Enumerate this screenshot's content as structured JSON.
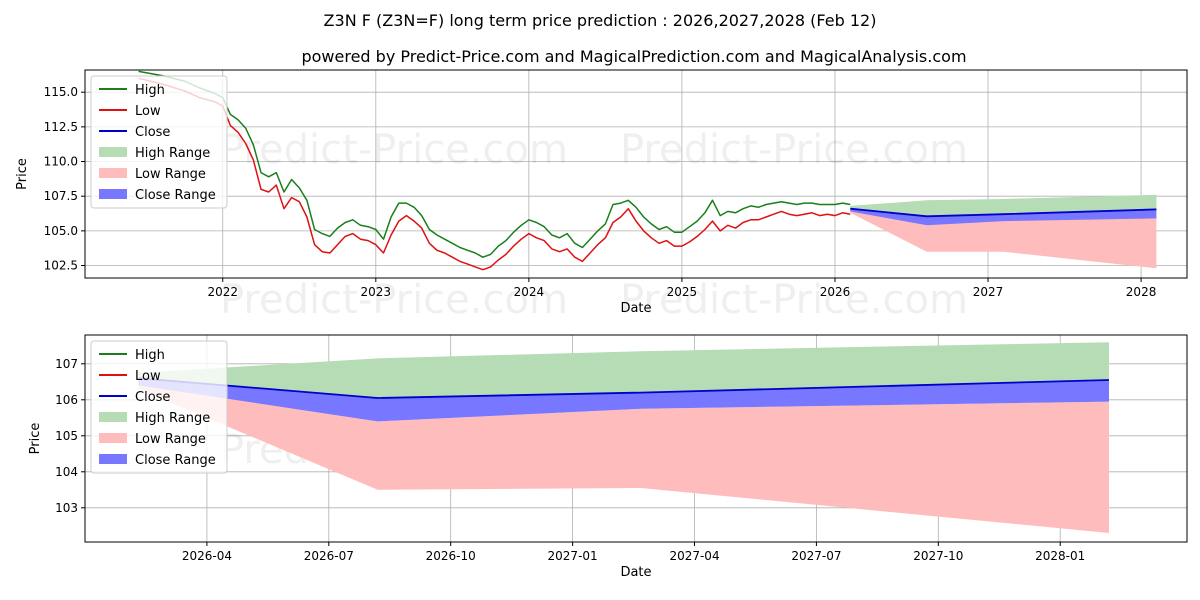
{
  "header": {
    "title": "Z3N F (Z3N=F) long term price prediction : 2026,2027,2028 (Feb 12)",
    "subtitle": "powered by Predict-Price.com and MagicalPrediction.com and MagicalAnalysis.com"
  },
  "watermark": "Predict-Price.com",
  "colors": {
    "high": "#1a7f1a",
    "low": "#dd1111",
    "close": "#0000cc",
    "high_range": "#b5dcb5",
    "low_range": "#ffbcbc",
    "close_range": "#7777ff",
    "grid": "#b0b0b0"
  },
  "chart_data": [
    {
      "type": "line",
      "name": "history",
      "xlabel": "Date",
      "ylabel": "Price",
      "xlim": [
        2021.1,
        2028.3
      ],
      "ylim": [
        101.6,
        116.6
      ],
      "x_ticks": [
        2022,
        2023,
        2024,
        2025,
        2026,
        2027,
        2028
      ],
      "x_tick_labels": [
        "2022",
        "2023",
        "2024",
        "2025",
        "2026",
        "2027",
        "2028"
      ],
      "y_ticks": [
        102.5,
        105.0,
        107.5,
        110.0,
        112.5,
        115.0
      ],
      "y_tick_labels": [
        "102.5",
        "105.0",
        "107.5",
        "110.0",
        "112.5",
        "115.0"
      ],
      "grid": true,
      "legend": [
        "High",
        "Low",
        "Close",
        "High Range",
        "Low Range",
        "Close Range"
      ],
      "legend_position": "top-left",
      "history": {
        "x": [
          2021.45,
          2021.6,
          2021.75,
          2021.85,
          2021.95,
          2022.0,
          2022.05,
          2022.1,
          2022.15,
          2022.2,
          2022.25,
          2022.3,
          2022.35,
          2022.4,
          2022.45,
          2022.5,
          2022.55,
          2022.6,
          2022.65,
          2022.7,
          2022.75,
          2022.8,
          2022.85,
          2022.9,
          2022.95,
          2023.0,
          2023.05,
          2023.1,
          2023.15,
          2023.2,
          2023.25,
          2023.3,
          2023.35,
          2023.4,
          2023.45,
          2023.5,
          2023.55,
          2023.6,
          2023.65,
          2023.7,
          2023.75,
          2023.8,
          2023.85,
          2023.9,
          2023.95,
          2024.0,
          2024.05,
          2024.1,
          2024.15,
          2024.2,
          2024.25,
          2024.3,
          2024.35,
          2024.4,
          2024.45,
          2024.5,
          2024.55,
          2024.6,
          2024.65,
          2024.7,
          2024.75,
          2024.8,
          2024.85,
          2024.9,
          2024.95,
          2025.0,
          2025.05,
          2025.1,
          2025.15,
          2025.2,
          2025.25,
          2025.3,
          2025.35,
          2025.4,
          2025.45,
          2025.5,
          2025.55,
          2025.6,
          2025.65,
          2025.7,
          2025.75,
          2025.8,
          2025.85,
          2025.9,
          2025.95,
          2026.0,
          2026.05,
          2026.1
        ],
        "close": [
          116.3,
          115.9,
          115.5,
          115.0,
          114.6,
          114.3,
          113.0,
          112.6,
          111.8,
          110.6,
          108.6,
          108.3,
          108.8,
          107.3,
          108.0,
          107.6,
          106.6,
          104.6,
          104.2,
          104.0,
          104.6,
          105.1,
          105.3,
          104.9,
          104.8,
          104.6,
          103.9,
          105.3,
          106.3,
          106.6,
          106.2,
          105.7,
          104.6,
          104.2,
          103.9,
          103.6,
          103.3,
          103.1,
          102.9,
          102.6,
          102.8,
          103.4,
          103.8,
          104.4,
          104.9,
          105.3,
          105.0,
          104.8,
          104.2,
          104.0,
          104.2,
          103.6,
          103.3,
          103.9,
          104.5,
          105.0,
          106.1,
          106.5,
          107.0,
          106.2,
          105.5,
          105.0,
          104.6,
          104.8,
          104.4,
          104.4,
          104.7,
          105.1,
          105.6,
          106.2,
          105.5,
          105.9,
          105.7,
          106.1,
          106.3,
          106.2,
          106.4,
          106.6,
          106.8,
          106.6,
          106.5,
          106.6,
          106.7,
          106.5,
          106.6,
          106.5,
          106.7,
          106.6
        ],
        "high": [
          116.5,
          116.2,
          115.8,
          115.3,
          114.9,
          114.6,
          113.4,
          113.0,
          112.4,
          111.2,
          109.2,
          108.9,
          109.2,
          107.8,
          108.7,
          108.1,
          107.2,
          105.1,
          104.8,
          104.6,
          105.2,
          105.6,
          105.8,
          105.4,
          105.3,
          105.1,
          104.4,
          106.0,
          107.0,
          107.0,
          106.7,
          106.1,
          105.1,
          104.7,
          104.4,
          104.1,
          103.8,
          103.6,
          103.4,
          103.1,
          103.3,
          103.9,
          104.3,
          104.9,
          105.4,
          105.8,
          105.6,
          105.3,
          104.7,
          104.5,
          104.8,
          104.1,
          103.8,
          104.4,
          105.0,
          105.5,
          106.9,
          107.0,
          107.2,
          106.7,
          106.0,
          105.5,
          105.1,
          105.3,
          104.9,
          104.9,
          105.3,
          105.7,
          106.3,
          107.2,
          106.1,
          106.4,
          106.3,
          106.6,
          106.8,
          106.7,
          106.9,
          107.0,
          107.1,
          107.0,
          106.9,
          107.0,
          107.0,
          106.9,
          106.9,
          106.9,
          107.0,
          106.9
        ],
        "low": [
          116.0,
          115.6,
          115.1,
          114.6,
          114.3,
          114.0,
          112.6,
          112.1,
          111.3,
          110.1,
          108.0,
          107.8,
          108.3,
          106.6,
          107.4,
          107.1,
          106.0,
          104.0,
          103.5,
          103.4,
          104.0,
          104.6,
          104.8,
          104.4,
          104.3,
          104.0,
          103.4,
          104.7,
          105.7,
          106.1,
          105.7,
          105.2,
          104.1,
          103.6,
          103.4,
          103.1,
          102.8,
          102.6,
          102.4,
          102.2,
          102.4,
          102.9,
          103.3,
          103.9,
          104.4,
          104.8,
          104.5,
          104.3,
          103.7,
          103.5,
          103.7,
          103.1,
          102.8,
          103.4,
          104.0,
          104.5,
          105.6,
          106.0,
          106.6,
          105.7,
          105.0,
          104.5,
          104.1,
          104.3,
          103.9,
          103.9,
          104.2,
          104.6,
          105.1,
          105.7,
          105.0,
          105.4,
          105.2,
          105.6,
          105.8,
          105.8,
          106.0,
          106.2,
          106.4,
          106.2,
          106.1,
          106.2,
          106.3,
          106.1,
          106.2,
          106.1,
          106.3,
          106.2
        ]
      },
      "forecast": {
        "x": [
          2026.1,
          2026.6,
          2027.1,
          2028.1
        ],
        "high_range_upper": [
          106.8,
          107.2,
          107.3,
          107.6
        ],
        "high_range_lower": [
          106.5,
          106.0,
          106.2,
          106.6
        ],
        "low_range_upper": [
          106.5,
          105.4,
          105.8,
          105.9
        ],
        "low_range_lower": [
          106.3,
          103.5,
          103.5,
          102.3
        ],
        "close_range_upper": [
          106.6,
          106.0,
          106.2,
          106.6
        ],
        "close_range_lower": [
          106.4,
          105.4,
          105.7,
          105.9
        ],
        "close": [
          106.6,
          106.05,
          106.2,
          106.55
        ]
      }
    },
    {
      "type": "line",
      "name": "forecast-zoom",
      "xlabel": "Date",
      "ylabel": "Price",
      "xlim": [
        2026.0,
        2028.26
      ],
      "ylim": [
        102.05,
        107.8
      ],
      "x_ticks": [
        2026.25,
        2026.5,
        2026.75,
        2027.0,
        2027.25,
        2027.5,
        2027.75,
        2028.0
      ],
      "x_tick_labels": [
        "2026-04",
        "2026-07",
        "2026-10",
        "2027-01",
        "2027-04",
        "2027-07",
        "2027-10",
        "2028-01"
      ],
      "y_ticks": [
        103,
        104,
        105,
        106,
        107
      ],
      "y_tick_labels": [
        "103",
        "104",
        "105",
        "106",
        "107"
      ],
      "grid": true,
      "legend": [
        "High",
        "Low",
        "Close",
        "High Range",
        "Low Range",
        "Close Range"
      ],
      "legend_position": "top-left",
      "forecast": {
        "x": [
          2026.11,
          2026.6,
          2027.14,
          2028.1
        ],
        "high_range_upper": [
          106.75,
          107.15,
          107.35,
          107.6
        ],
        "high_range_lower": [
          106.5,
          106.05,
          106.2,
          106.55
        ],
        "low_range_upper": [
          106.5,
          105.4,
          105.75,
          105.95
        ],
        "low_range_lower": [
          106.3,
          103.5,
          103.55,
          102.3
        ],
        "close_range_upper": [
          106.6,
          106.05,
          106.2,
          106.55
        ],
        "close_range_lower": [
          106.4,
          105.4,
          105.75,
          105.95
        ],
        "close": [
          106.6,
          106.05,
          106.2,
          106.55
        ]
      }
    }
  ]
}
